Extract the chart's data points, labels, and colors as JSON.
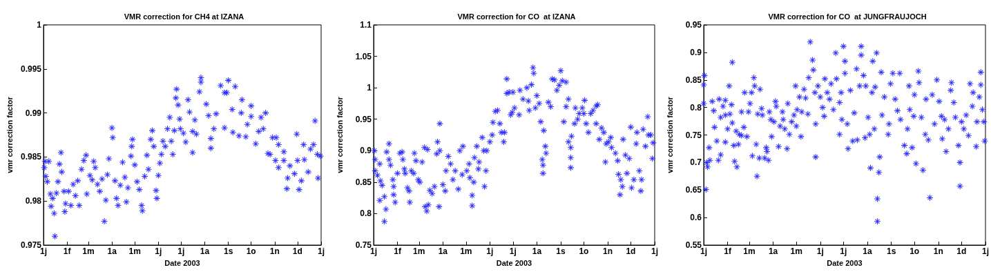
{
  "chart_data": [
    {
      "type": "scatter",
      "title": "VMR correction for CH4 at IZANA",
      "xlabel": "Date 2003",
      "ylabel": "vmr correction factor",
      "color": "#1f1fff",
      "marker": "star",
      "xlim": [
        "2003-01-01",
        "2004-01-01"
      ],
      "xticks": [
        {
          "value": "2003-01-01",
          "label": "1j"
        },
        {
          "value": "2003-02-01",
          "label": "1f"
        },
        {
          "value": "2003-03-01",
          "label": "1m"
        },
        {
          "value": "2003-04-01",
          "label": "1a"
        },
        {
          "value": "2003-05-01",
          "label": "1m"
        },
        {
          "value": "2003-06-01",
          "label": "1j"
        },
        {
          "value": "2003-07-01",
          "label": "1j"
        },
        {
          "value": "2003-08-01",
          "label": "1a"
        },
        {
          "value": "2003-09-01",
          "label": "1s"
        },
        {
          "value": "2003-10-01",
          "label": "1o"
        },
        {
          "value": "2003-11-01",
          "label": "1n"
        },
        {
          "value": "2003-12-01",
          "label": "1d"
        },
        {
          "value": "2004-01-01",
          "label": "1j"
        }
      ],
      "ylim": [
        0.975,
        1
      ],
      "yticks": [
        0.975,
        0.98,
        0.985,
        0.99,
        0.995,
        1
      ],
      "x": [
        "2003-01-02",
        "2003-01-03",
        "2003-01-04",
        "2003-01-06",
        "2003-01-08",
        "2003-01-10",
        "2003-01-11",
        "2003-01-13",
        "2003-01-15",
        "2003-01-16",
        "2003-01-18",
        "2003-01-20",
        "2003-01-22",
        "2003-01-24",
        "2003-01-25",
        "2003-01-28",
        "2003-01-29",
        "2003-01-30",
        "2003-02-03",
        "2003-02-06",
        "2003-02-09",
        "2003-02-12",
        "2003-02-15",
        "2003-02-17",
        "2003-02-20",
        "2003-02-23",
        "2003-02-26",
        "2003-02-27",
        "2003-03-03",
        "2003-03-06",
        "2003-03-08",
        "2003-03-10",
        "2003-03-13",
        "2003-03-16",
        "2003-03-19",
        "2003-03-22",
        "2003-03-24",
        "2003-03-26",
        "2003-03-28",
        "2003-04-01",
        "2003-04-02",
        "2003-04-05",
        "2003-04-07",
        "2003-04-09",
        "2003-04-12",
        "2003-04-15",
        "2003-04-18",
        "2003-04-20",
        "2003-04-22",
        "2003-04-26",
        "2003-04-27",
        "2003-04-28",
        "2003-05-01",
        "2003-05-04",
        "2003-05-07",
        "2003-05-10",
        "2003-05-11",
        "2003-05-14",
        "2003-05-17",
        "2003-05-19",
        "2003-05-22",
        "2003-05-24",
        "2003-05-26",
        "2003-05-29",
        "2003-05-30",
        "2003-06-01",
        "2003-06-03",
        "2003-06-05",
        "2003-06-07",
        "2003-06-10",
        "2003-06-13",
        "2003-06-16",
        "2003-06-18",
        "2003-06-20",
        "2003-06-22",
        "2003-06-24",
        "2003-06-25",
        "2003-06-27",
        "2003-06-29",
        "2003-06-30",
        "2003-07-04",
        "2003-07-07",
        "2003-07-10",
        "2003-07-12",
        "2003-07-16",
        "2003-07-16",
        "2003-07-19",
        "2003-07-21",
        "2003-07-25",
        "2003-07-27",
        "2003-07-27",
        "2003-08-03",
        "2003-08-06",
        "2003-08-09",
        "2003-08-09",
        "2003-08-13",
        "2003-08-16",
        "2003-08-22",
        "2003-08-27",
        "2003-08-27",
        "2003-08-30",
        "2003-09-01",
        "2003-09-06",
        "2003-09-07",
        "2003-09-10",
        "2003-09-15",
        "2003-09-18",
        "2003-09-19",
        "2003-09-24",
        "2003-09-26",
        "2003-10-01",
        "2003-10-01",
        "2003-10-07",
        "2003-10-11",
        "2003-10-14",
        "2003-10-17",
        "2003-10-20",
        "2003-10-23",
        "2003-10-26",
        "2003-10-29",
        "2003-11-02",
        "2003-11-03",
        "2003-11-06",
        "2003-11-06",
        "2003-11-13",
        "2003-11-13",
        "2003-11-17",
        "2003-11-18",
        "2003-11-21",
        "2003-11-27",
        "2003-11-30",
        "2003-12-01",
        "2003-12-03",
        "2003-12-06",
        "2003-12-09",
        "2003-12-10",
        "2003-12-15",
        "2003-12-18",
        "2003-12-22",
        "2003-12-24",
        "2003-12-27",
        "2003-12-28",
        "2003-12-31"
      ],
      "values": [
        0.9838,
        0.9845,
        0.9828,
        0.9822,
        0.9845,
        0.9808,
        0.9794,
        0.9803,
        0.9786,
        0.976,
        0.9809,
        0.9822,
        0.9842,
        0.9855,
        0.9833,
        0.9811,
        0.9788,
        0.9797,
        0.9811,
        0.9795,
        0.9819,
        0.9806,
        0.9823,
        0.9795,
        0.9836,
        0.9846,
        0.9852,
        0.9808,
        0.9829,
        0.9824,
        0.9845,
        0.9838,
        0.9819,
        0.9811,
        0.9825,
        0.9777,
        0.9801,
        0.983,
        0.9848,
        0.9883,
        0.9872,
        0.9823,
        0.9803,
        0.9795,
        0.9818,
        0.9844,
        0.9827,
        0.9799,
        0.9815,
        0.9851,
        0.9862,
        0.987,
        0.9841,
        0.9822,
        0.9813,
        0.9795,
        0.9789,
        0.9828,
        0.9852,
        0.9836,
        0.987,
        0.988,
        0.9862,
        0.9812,
        0.9803,
        0.9829,
        0.9843,
        0.9853,
        0.9868,
        0.9862,
        0.9882,
        0.9895,
        0.9868,
        0.9853,
        0.988,
        0.9917,
        0.9927,
        0.9909,
        0.9893,
        0.9882,
        0.9877,
        0.9867,
        0.9915,
        0.9901,
        0.9879,
        0.9855,
        0.9892,
        0.9876,
        0.9924,
        0.994,
        0.9935,
        0.991,
        0.9897,
        0.9871,
        0.986,
        0.9882,
        0.9899,
        0.9931,
        0.9923,
        0.9883,
        0.9923,
        0.9937,
        0.9904,
        0.9878,
        0.993,
        0.9874,
        0.99,
        0.9915,
        0.9873,
        0.9887,
        0.9908,
        0.9896,
        0.9865,
        0.9879,
        0.9895,
        0.9882,
        0.99,
        0.9854,
        0.9853,
        0.9872,
        0.9846,
        0.9872,
        0.9864,
        0.9838,
        0.9856,
        0.9846,
        0.9814,
        0.9826,
        0.984,
        0.9831,
        0.9876,
        0.9846,
        0.9813,
        0.9823,
        0.9864,
        0.9847,
        0.9833,
        0.9859,
        0.9864,
        0.9891,
        0.9853,
        0.9826,
        0.9851
      ]
    },
    {
      "type": "scatter",
      "title": "VMR correction for CO  at IZANA",
      "xlabel": "Date 2003",
      "ylabel": "vmr correction factor",
      "color": "#1f1fff",
      "marker": "star",
      "xlim": [
        "2003-01-01",
        "2004-01-01"
      ],
      "xticks": [
        {
          "value": "2003-01-01",
          "label": "1j"
        },
        {
          "value": "2003-02-01",
          "label": "1f"
        },
        {
          "value": "2003-03-01",
          "label": "1m"
        },
        {
          "value": "2003-04-01",
          "label": "1a"
        },
        {
          "value": "2003-05-01",
          "label": "1m"
        },
        {
          "value": "2003-06-01",
          "label": "1j"
        },
        {
          "value": "2003-07-01",
          "label": "1j"
        },
        {
          "value": "2003-08-01",
          "label": "1a"
        },
        {
          "value": "2003-09-01",
          "label": "1s"
        },
        {
          "value": "2003-10-01",
          "label": "1o"
        },
        {
          "value": "2003-11-01",
          "label": "1n"
        },
        {
          "value": "2003-12-01",
          "label": "1d"
        },
        {
          "value": "2004-01-01",
          "label": "1j"
        }
      ],
      "ylim": [
        0.75,
        1.1
      ],
      "yticks": [
        0.75,
        0.8,
        0.85,
        0.9,
        0.95,
        1,
        1.05,
        1.1
      ],
      "x": [
        "2003-01-02",
        "2003-01-03",
        "2003-01-03",
        "2003-01-06",
        "2003-01-09",
        "2003-01-10",
        "2003-01-12",
        "2003-01-09",
        "2003-01-15",
        "2003-01-17",
        "2003-01-15",
        "2003-01-18",
        "2003-01-21",
        "2003-01-21",
        "2003-01-23",
        "2003-01-26",
        "2003-01-27",
        "2003-01-27",
        "2003-01-29",
        "2003-02-01",
        "2003-02-04",
        "2003-02-07",
        "2003-02-08",
        "2003-02-10",
        "2003-02-11",
        "2003-02-14",
        "2003-02-16",
        "2003-02-17",
        "2003-02-19",
        "2003-02-22",
        "2003-02-23",
        "2003-02-25",
        "2003-02-28",
        "2003-03-02",
        "2003-03-05",
        "2003-03-08",
        "2003-03-09",
        "2003-03-11",
        "2003-03-12",
        "2003-03-13",
        "2003-03-15",
        "2003-03-18",
        "2003-03-21",
        "2003-03-24",
        "2003-03-25",
        "2003-03-27",
        "2003-03-28",
        "2003-03-28",
        "2003-04-01",
        "2003-04-04",
        "2003-04-05",
        "2003-04-08",
        "2003-04-11",
        "2003-04-14",
        "2003-04-17",
        "2003-04-21",
        "2003-04-23",
        "2003-04-27",
        "2003-04-26",
        "2003-05-02",
        "2003-05-05",
        "2003-05-06",
        "2003-05-09",
        "2003-05-09",
        "2003-05-11",
        "2003-05-12",
        "2003-05-15",
        "2003-05-17",
        "2003-05-18",
        "2003-05-22",
        "2003-05-24",
        "2003-05-25",
        "2003-05-27",
        "2003-05-28",
        "2003-06-01",
        "2003-06-04",
        "2003-06-05",
        "2003-06-08",
        "2003-06-11",
        "2003-06-14",
        "2003-06-16",
        "2003-06-19",
        "2003-06-20",
        "2003-06-23",
        "2003-06-23",
        "2003-06-26",
        "2003-06-28",
        "2003-06-30",
        "2003-07-01",
        "2003-07-03",
        "2003-07-09",
        "2003-07-10",
        "2003-07-14",
        "2003-07-19",
        "2003-07-21",
        "2003-07-22",
        "2003-07-25",
        "2003-07-27",
        "2003-07-28",
        "2003-07-30",
        "2003-08-01",
        "2003-08-04",
        "2003-08-06",
        "2003-08-10",
        "2003-08-12",
        "2003-08-13",
        "2003-08-08",
        "2003-08-09",
        "2003-08-09",
        "2003-08-16",
        "2003-08-19",
        "2003-08-21",
        "2003-08-24",
        "2003-08-27",
        "2003-08-30",
        "2003-09-01",
        "2003-09-03",
        "2003-09-08",
        "2003-09-05",
        "2003-09-08",
        "2003-09-11",
        "2003-09-11",
        "2003-09-14",
        "2003-09-15",
        "2003-09-14",
        "2003-09-14",
        "2003-09-19",
        "2003-09-20",
        "2003-09-23",
        "2003-09-25",
        "2003-09-29",
        "2003-10-01",
        "2003-10-02",
        "2003-10-04",
        "2003-10-07",
        "2003-10-10",
        "2003-10-13",
        "2003-10-17",
        "2003-10-19",
        "2003-10-17",
        "2003-10-21",
        "2003-10-24",
        "2003-10-27",
        "2003-10-29",
        "2003-10-30",
        "2003-11-02",
        "2003-11-05",
        "2003-11-06",
        "2003-11-11",
        "2003-11-14",
        "2003-11-15",
        "2003-11-18",
        "2003-11-17",
        "2003-11-20",
        "2003-11-21",
        "2003-11-24",
        "2003-11-26",
        "2003-11-29",
        "2003-12-01",
        "2003-12-02",
        "2003-12-05",
        "2003-12-08",
        "2003-12-09",
        "2003-12-12",
        "2003-12-14",
        "2003-12-15",
        "2003-12-17",
        "2003-12-20",
        "2003-12-23",
        "2003-12-24",
        "2003-12-27",
        "2003-12-29",
        "2003-12-30"
      ],
      "values": [
        0.9,
        0.886,
        0.868,
        0.861,
        0.879,
        0.852,
        0.845,
        0.821,
        0.827,
        0.807,
        0.7875,
        0.898,
        0.911,
        0.886,
        0.877,
        0.854,
        0.843,
        0.83,
        0.818,
        0.864,
        0.896,
        0.898,
        0.886,
        0.871,
        0.864,
        0.841,
        0.836,
        0.818,
        0.868,
        0.864,
        0.896,
        0.884,
        0.854,
        0.85,
        0.882,
        0.905,
        0.811,
        0.804,
        0.902,
        0.814,
        0.837,
        0.832,
        0.843,
        0.895,
        0.914,
        0.811,
        0.943,
        0.9,
        0.846,
        0.836,
        0.868,
        0.891,
        0.879,
        0.854,
        0.868,
        0.839,
        0.9,
        0.907,
        0.862,
        0.868,
        0.879,
        0.857,
        0.829,
        0.8125,
        0.85,
        0.889,
        0.907,
        0.871,
        0.882,
        0.921,
        0.9,
        0.843,
        0.868,
        0.9,
        0.914,
        0.925,
        0.945,
        0.9625,
        0.964,
        0.943,
        0.929,
        0.914,
        0.929,
        1.014,
        0.991,
        0.993,
        0.957,
        0.961,
        0.993,
        0.968,
        0.957,
        0.996,
        0.982,
        1.0,
        0.979,
        0.964,
        1.005,
        1.032,
        1.023,
        0.968,
        0.9875,
        0.975,
        0.946,
        0.932,
        0.907,
        0.896,
        0.886,
        0.877,
        0.864,
        0.977,
        0.97,
        1.014,
        1.0125,
        0.996,
        1.004,
        1.027,
        1.011,
        1.009,
        0.946,
        0.97,
        0.982,
        0.914,
        0.905,
        0.923,
        0.889,
        0.873,
        0.943,
        0.968,
        0.95,
        0.959,
        0.968,
        0.959,
        0.98,
        0.943,
        0.929,
        0.959,
        0.964,
        0.971,
        0.973,
        0.943,
        0.918,
        0.936,
        0.929,
        0.882,
        0.911,
        0.914,
        0.921,
        0.905,
        0.896,
        0.884,
        0.8625,
        0.854,
        0.83,
        0.843,
        0.918,
        0.893,
        0.864,
        0.8875,
        0.9375,
        0.841,
        0.854,
        0.911,
        0.929,
        0.868,
        0.836,
        0.854,
        0.934,
        0.907,
        0.954,
        0.925,
        0.925,
        0.8875,
        0.9125
      ]
    },
    {
      "type": "scatter",
      "title": "VMR correction for CO  at JUNGFRAUJOCH",
      "xlabel": "Date 2003",
      "ylabel": "vmr correction factor",
      "color": "#1f1fff",
      "marker": "star",
      "xlim": [
        "2003-01-01",
        "2004-01-01"
      ],
      "xticks": [
        {
          "value": "2003-01-01",
          "label": "1j"
        },
        {
          "value": "2003-02-01",
          "label": "1f"
        },
        {
          "value": "2003-03-01",
          "label": "1m"
        },
        {
          "value": "2003-04-01",
          "label": "1a"
        },
        {
          "value": "2003-05-01",
          "label": "1m"
        },
        {
          "value": "2003-06-01",
          "label": "1j"
        },
        {
          "value": "2003-07-01",
          "label": "1j"
        },
        {
          "value": "2003-08-01",
          "label": "1a"
        },
        {
          "value": "2003-09-01",
          "label": "1s"
        },
        {
          "value": "2003-10-01",
          "label": "1o"
        },
        {
          "value": "2003-11-01",
          "label": "1n"
        },
        {
          "value": "2003-12-01",
          "label": "1d"
        },
        {
          "value": "2004-01-01",
          "label": "1j"
        }
      ],
      "ylim": [
        0.55,
        0.95
      ],
      "yticks": [
        0.55,
        0.6,
        0.65,
        0.7,
        0.75,
        0.8,
        0.85,
        0.9,
        0.95
      ],
      "x": [
        "2003-01-02",
        "2003-01-01",
        "2003-01-01",
        "2003-01-04",
        "2003-01-05",
        "2003-01-06",
        "2003-01-08",
        "2003-01-09",
        "2003-01-12",
        "2003-01-14",
        "2003-01-15",
        "2003-01-18",
        "2003-01-20",
        "2003-01-21",
        "2003-01-23",
        "2003-01-23",
        "2003-01-26",
        "2003-01-29",
        "2003-01-29",
        "2003-01-29",
        "2003-02-01",
        "2003-02-03",
        "2003-02-04",
        "2003-02-06",
        "2003-02-07",
        "2003-02-07",
        "2003-02-09",
        "2003-02-10",
        "2003-02-12",
        "2003-02-13",
        "2003-02-15",
        "2003-02-16",
        "2003-02-19",
        "2003-02-19",
        "2003-02-22",
        "2003-02-23",
        "2003-02-26",
        "2003-02-28",
        "2003-03-02",
        "2003-03-04",
        "2003-03-07",
        "2003-03-08",
        "2003-03-05",
        "2003-03-10",
        "2003-03-11",
        "2003-03-12",
        "2003-03-14",
        "2003-03-15",
        "2003-03-17",
        "2003-03-18",
        "2003-03-21",
        "2003-03-23",
        "2003-03-24",
        "2003-03-26",
        "2003-03-27",
        "2003-03-29",
        "2003-03-30",
        "2003-04-02",
        "2003-04-04",
        "2003-04-05",
        "2003-04-08",
        "2003-04-10",
        "2003-04-13",
        "2003-04-14",
        "2003-04-16",
        "2003-04-19",
        "2003-04-20",
        "2003-04-22",
        "2003-04-25",
        "2003-04-28",
        "2003-04-30",
        "2003-05-01",
        "2003-05-02",
        "2003-05-05",
        "2003-05-07",
        "2003-05-08",
        "2003-05-11",
        "2003-05-13",
        "2003-05-16",
        "2003-05-17",
        "2003-05-19",
        "2003-05-22",
        "2003-05-23",
        "2003-05-25",
        "2003-05-26",
        "2003-05-26",
        "2003-05-29",
        "2003-06-01",
        "2003-06-04",
        "2003-06-06",
        "2003-06-07",
        "2003-06-10",
        "2003-06-13",
        "2003-06-15",
        "2003-06-18",
        "2003-06-21",
        "2003-06-22",
        "2003-06-26",
        "2003-06-26",
        "2003-06-28",
        "2003-06-29",
        "2003-07-01",
        "2003-07-03",
        "2003-07-03",
        "2003-07-06",
        "2003-07-07",
        "2003-07-10",
        "2003-07-13",
        "2003-07-15",
        "2003-07-18",
        "2003-07-19",
        "2003-07-22",
        "2003-07-24",
        "2003-07-24",
        "2003-07-27",
        "2003-07-29",
        "2003-07-30",
        "2003-08-02",
        "2003-08-04",
        "2003-08-05",
        "2003-08-07",
        "2003-08-08",
        "2003-08-10",
        "2003-08-11",
        "2003-08-13",
        "2003-08-14",
        "2003-08-14",
        "2003-08-16",
        "2003-08-17",
        "2003-08-19",
        "2003-08-20",
        "2003-08-23",
        "2003-08-28",
        "2003-08-29",
        "2003-08-31",
        "2003-09-03",
        "2003-09-06",
        "2003-09-09",
        "2003-09-12",
        "2003-09-13",
        "2003-09-18",
        "2003-09-21",
        "2003-09-22",
        "2003-09-24",
        "2003-09-25",
        "2003-09-28",
        "2003-09-30",
        "2003-10-01",
        "2003-10-03",
        "2003-10-06",
        "2003-10-07",
        "2003-10-10",
        "2003-10-12",
        "2003-10-15",
        "2003-10-16",
        "2003-10-19",
        "2003-10-21",
        "2003-10-24",
        "2003-10-27",
        "2003-10-30",
        "2003-11-02",
        "2003-11-05",
        "2003-11-06",
        "2003-11-09",
        "2003-11-11",
        "2003-11-14",
        "2003-11-17",
        "2003-11-18",
        "2003-11-21",
        "2003-11-23",
        "2003-11-27",
        "2003-11-29",
        "2003-11-29",
        "2003-12-01",
        "2003-12-04",
        "2003-12-07",
        "2003-12-10",
        "2003-12-12",
        "2003-12-15",
        "2003-12-16",
        "2003-12-20",
        "2003-12-21",
        "2003-12-24",
        "2003-12-26",
        "2003-12-26",
        "2003-12-28",
        "2003-12-30",
        "2003-12-31"
      ],
      "values": [
        0.858,
        0.841,
        0.807,
        0.651,
        0.7,
        0.692,
        0.727,
        0.704,
        0.811,
        0.794,
        0.764,
        0.739,
        0.704,
        0.815,
        0.782,
        0.714,
        0.802,
        0.813,
        0.786,
        0.737,
        0.761,
        0.839,
        0.788,
        0.805,
        0.882,
        0.772,
        0.731,
        0.702,
        0.757,
        0.692,
        0.733,
        0.751,
        0.749,
        0.792,
        0.764,
        0.827,
        0.747,
        0.792,
        0.807,
        0.827,
        0.854,
        0.839,
        0.712,
        0.733,
        0.675,
        0.788,
        0.708,
        0.833,
        0.798,
        0.786,
        0.708,
        0.727,
        0.72,
        0.704,
        0.792,
        0.778,
        0.747,
        0.774,
        0.811,
        0.802,
        0.729,
        0.766,
        0.792,
        0.778,
        0.761,
        0.725,
        0.807,
        0.751,
        0.774,
        0.786,
        0.839,
        0.766,
        0.796,
        0.819,
        0.747,
        0.792,
        0.833,
        0.817,
        0.788,
        0.854,
        0.919,
        0.886,
        0.868,
        0.827,
        0.77,
        0.71,
        0.839,
        0.819,
        0.8,
        0.784,
        0.852,
        0.827,
        0.815,
        0.843,
        0.796,
        0.899,
        0.852,
        0.809,
        0.751,
        0.827,
        0.778,
        0.911,
        0.884,
        0.862,
        0.77,
        0.725,
        0.831,
        0.739,
        0.79,
        0.87,
        0.741,
        0.839,
        0.911,
        0.895,
        0.858,
        0.745,
        0.839,
        0.782,
        0.751,
        0.69,
        0.827,
        0.884,
        0.761,
        0.837,
        0.899,
        0.634,
        0.593,
        0.682,
        0.71,
        0.864,
        0.786,
        0.819,
        0.751,
        0.77,
        0.843,
        0.862,
        0.815,
        0.794,
        0.862,
        0.778,
        0.731,
        0.716,
        0.761,
        0.839,
        0.796,
        0.727,
        0.784,
        0.823,
        0.698,
        0.866,
        0.845,
        0.782,
        0.686,
        0.751,
        0.815,
        0.741,
        0.636,
        0.823,
        0.77,
        0.85,
        0.811,
        0.784,
        0.743,
        0.778,
        0.72,
        0.761,
        0.831,
        0.845,
        0.809,
        0.782,
        0.731,
        0.7,
        0.657,
        0.774,
        0.761,
        0.786,
        0.749,
        0.843,
        0.802,
        0.827,
        0.729,
        0.774,
        0.819,
        0.864,
        0.841,
        0.796,
        0.774,
        0.739
      ]
    }
  ]
}
